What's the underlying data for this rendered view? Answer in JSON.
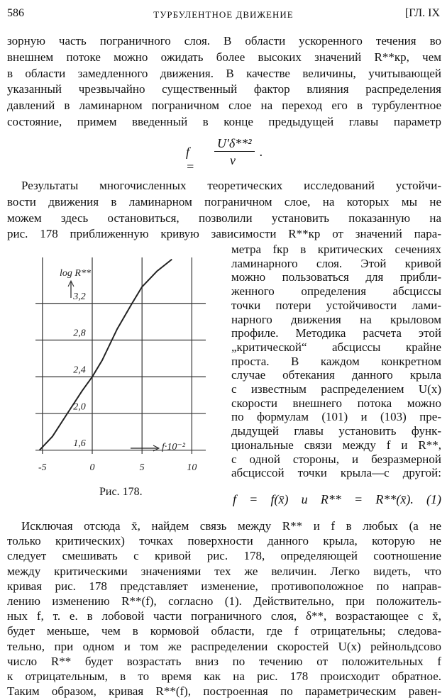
{
  "header": {
    "page_number": "586",
    "title": "ТУРБУЛЕНТНОЕ ДВИЖЕНИЕ",
    "chapter": "[ГЛ. IX"
  },
  "para1": [
    "зорную часть пограничного слоя. В области ускоренного течения во",
    "внешнем потоке можно ожидать более высоких значений R**кр, чем",
    "в области замедленного движения. В качестве величины, учитывающей",
    "указанный чрезвычайно существенный фактор влияния распределения",
    "давлений в ламинарном пограничном слое на переход его в турбулентное",
    "состояние, примем введенный в конце предыдущей главы параметр"
  ],
  "formula": {
    "lhs": "f =",
    "numerator": "U′δ**²",
    "denominator": "ν",
    "end": "."
  },
  "para2": [
    "Результаты многочисленных теоретических исследований устойчи-",
    "вости движения в ламинарном пограничном слое, на которых мы не",
    "можем здесь остановиться, позволили установить показанную на",
    "рис. 178 приближенную кривую зависимости R**кр от значений пара-"
  ],
  "column": [
    "метра fкр в критических сечениях",
    "ламинарного слоя. Этой кривой",
    "можно пользоваться для прибли-",
    "женного определения абсциссы",
    "точки потери устойчивости лами-",
    "нарного движения на крыловом",
    "профиле. Методика расчета этой",
    "„критической“ абсциссы крайне",
    "проста. В каждом конкретном",
    "случае обтекания данного крыла",
    "с известным распределением U(x)",
    "скорости внешнего потока можно",
    "по формулам (101) и (103) пре-",
    "дыдущей главы установить функ-",
    "циональные связи между f и R**,",
    "с одной стороны, и безразмерной",
    "абсциссой точки крыла—с другой:"
  ],
  "equation_1": "f = f(x̄)    и    R** = R**(x̄). (1)",
  "figure": {
    "caption": "Рис. 178.",
    "chart_data": {
      "type": "line",
      "xlabel": "f·10⁻²",
      "ylabel": "log R**",
      "x": [
        -5.3,
        -4,
        -2.5,
        -1,
        0,
        1,
        2.5,
        4,
        5,
        6.5,
        8
      ],
      "series": [
        {
          "color": "#222222",
          "values": [
            1.6,
            1.75,
            2.0,
            2.25,
            2.4,
            2.58,
            2.92,
            3.2,
            3.38,
            3.55,
            3.68
          ]
        }
      ],
      "xlim": [
        -5.7,
        11.4
      ],
      "ylim": [
        1.56,
        3.7
      ],
      "xticks": [
        -5,
        0,
        5,
        10
      ],
      "yticks": [
        {
          "value": 1.6,
          "label": "1,6"
        },
        {
          "value": 2.0,
          "label": "2,0"
        },
        {
          "value": 2.4,
          "label": "2,4"
        },
        {
          "value": 2.8,
          "label": "2,8"
        },
        {
          "value": 3.2,
          "label": "3,2"
        }
      ],
      "grid": true
    }
  },
  "para3": [
    "Исключая отсюда x̄, найдем связь между R** и f в любых (а не",
    "только критических) точках поверхности данного крыла, которую не",
    "следует смешивать с кривой рис. 178, определяющей соотношение",
    "между критическими значениями тех же величин. Легко видеть, что",
    "кривая рис. 178 представляет изменение, противоположное по направ-",
    "лению изменению R**(f), согласно (1). Действительно, при положитель-",
    "ных f, т. е. в лобовой части пограничного слоя, δ**, возрастающее с x̄,",
    "будет меньше, чем в кормовой области, где f отрицательны; следова-",
    "тельно, при одном и том же распределении скоростей U(x) рейнольдсово",
    "число R** будет возрастать вниз по течению от положительных f",
    "к отрицательным, в то время как на рис. 178 происходит обратное.",
    "Таким образом, кривая R**(f), построенная по параметрическим равен-"
  ]
}
